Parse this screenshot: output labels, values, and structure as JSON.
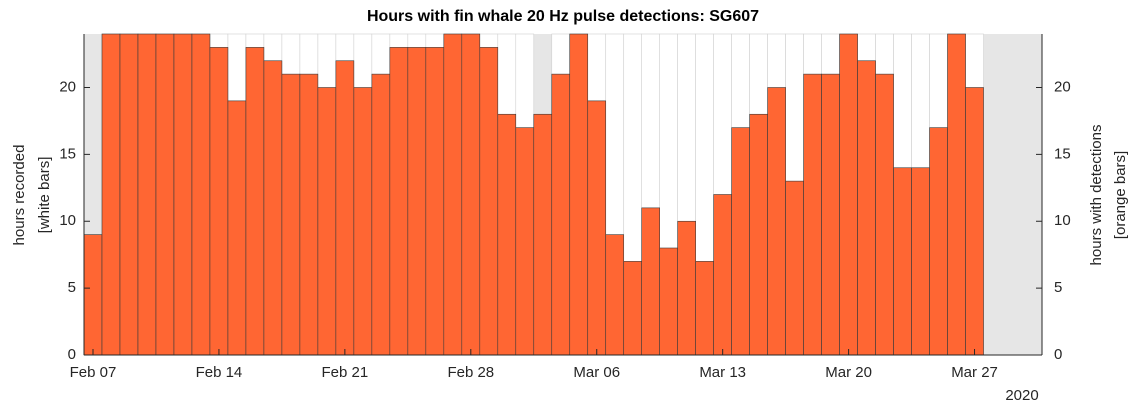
{
  "chart_data": {
    "type": "bar",
    "title": "Hours with fin whale 20 Hz pulse detections: SG607",
    "ylabel": [
      "hours recorded",
      "[white bars]"
    ],
    "y2label": [
      "hours with detections",
      "[orange bars]"
    ],
    "year_label": "2020",
    "background": "#e6e6e6",
    "x": [
      "2020-02-07",
      "2020-02-08",
      "2020-02-09",
      "2020-02-10",
      "2020-02-11",
      "2020-02-12",
      "2020-02-13",
      "2020-02-14",
      "2020-02-15",
      "2020-02-16",
      "2020-02-17",
      "2020-02-18",
      "2020-02-19",
      "2020-02-20",
      "2020-02-21",
      "2020-02-22",
      "2020-02-23",
      "2020-02-24",
      "2020-02-25",
      "2020-02-26",
      "2020-02-27",
      "2020-02-28",
      "2020-02-29",
      "2020-03-01",
      "2020-03-02",
      "2020-03-03",
      "2020-03-04",
      "2020-03-05",
      "2020-03-06",
      "2020-03-07",
      "2020-03-08",
      "2020-03-09",
      "2020-03-10",
      "2020-03-11",
      "2020-03-12",
      "2020-03-13",
      "2020-03-14",
      "2020-03-15",
      "2020-03-16",
      "2020-03-17",
      "2020-03-18",
      "2020-03-19",
      "2020-03-20",
      "2020-03-21",
      "2020-03-22",
      "2020-03-23",
      "2020-03-24",
      "2020-03-25",
      "2020-03-26",
      "2020-03-27"
    ],
    "series": [
      {
        "color": "#ffffff",
        "values": [
          9,
          24,
          24,
          24,
          24,
          24,
          24,
          24,
          24,
          24,
          24,
          24,
          24,
          24,
          24,
          24,
          24,
          24,
          24,
          24,
          24,
          24,
          24,
          24,
          24,
          18,
          24,
          24,
          24,
          24,
          24,
          24,
          24,
          24,
          24,
          24,
          24,
          24,
          24,
          24,
          24,
          24,
          24,
          24,
          24,
          24,
          24,
          24,
          24,
          24
        ]
      },
      {
        "color": "#ff6633",
        "axis": "y2",
        "values": [
          9,
          24,
          24,
          24,
          24,
          24,
          24,
          23,
          19,
          23,
          22,
          21,
          21,
          20,
          22,
          20,
          21,
          23,
          23,
          23,
          24,
          24,
          23,
          18,
          17,
          18,
          21,
          24,
          19,
          9,
          7,
          11,
          8,
          10,
          7,
          12,
          17,
          18,
          20,
          13,
          21,
          21,
          24,
          22,
          21,
          14,
          14,
          17,
          24,
          20
        ]
      }
    ],
    "xlim": [
      "2020-02-06T12:00",
      "2020-03-30T18:00"
    ],
    "xticks": [
      {
        "value": "2020-02-07",
        "label": "Feb 07"
      },
      {
        "value": "2020-02-14",
        "label": "Feb 14"
      },
      {
        "value": "2020-02-21",
        "label": "Feb 21"
      },
      {
        "value": "2020-02-28",
        "label": "Feb 28"
      },
      {
        "value": "2020-03-06",
        "label": "Mar 06"
      },
      {
        "value": "2020-03-13",
        "label": "Mar 13"
      },
      {
        "value": "2020-03-20",
        "label": "Mar 20"
      },
      {
        "value": "2020-03-27",
        "label": "Mar 27"
      }
    ],
    "ylim": [
      0,
      24
    ],
    "yticks": [
      0,
      5,
      10,
      15,
      20
    ],
    "y2lim": [
      0,
      24
    ],
    "y2ticks": [
      0,
      5,
      10,
      15,
      20
    ]
  }
}
